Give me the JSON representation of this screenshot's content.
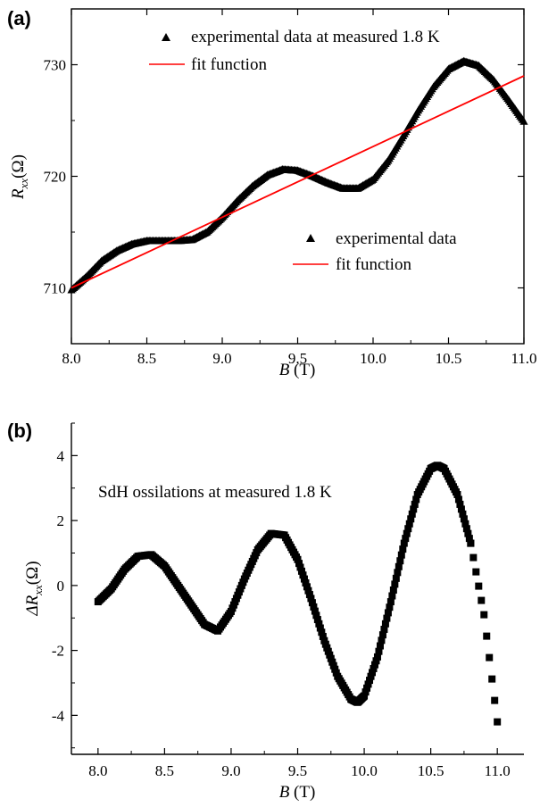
{
  "chart_data": [
    {
      "panel_label": "(a)",
      "type": "scatter",
      "xlabel": {
        "italic": "B",
        "rest": " (T)"
      },
      "ylabel": {
        "italic": "R",
        "sub": "xx",
        "rest": "(Ω)"
      },
      "xlim": [
        8.0,
        11.0
      ],
      "ylim": [
        705,
        735
      ],
      "xticks": [
        "8.0",
        "8.5",
        "9.0",
        "9.5",
        "10.0",
        "10.5",
        "11.0"
      ],
      "yticks": [
        "710",
        "720",
        "730"
      ],
      "legend_top": [
        {
          "label": "experimental data at measured 1.8 K",
          "marker": "triangle"
        },
        {
          "label": "fit function",
          "marker": "line"
        }
      ],
      "legend_mid": [
        {
          "label": "experimental data",
          "marker": "triangle"
        },
        {
          "label": "fit function",
          "marker": "line"
        }
      ],
      "series": [
        {
          "name": "experimental data",
          "marker": "triangle",
          "color": "#000000",
          "points": [
            [
              8.0,
              709.8
            ],
            [
              8.1,
              711.0
            ],
            [
              8.2,
              712.4
            ],
            [
              8.3,
              713.3
            ],
            [
              8.4,
              713.9
            ],
            [
              8.5,
              714.2
            ],
            [
              8.6,
              714.2
            ],
            [
              8.7,
              714.2
            ],
            [
              8.8,
              714.3
            ],
            [
              8.9,
              715.0
            ],
            [
              9.0,
              716.3
            ],
            [
              9.1,
              717.8
            ],
            [
              9.2,
              719.1
            ],
            [
              9.3,
              720.1
            ],
            [
              9.4,
              720.6
            ],
            [
              9.5,
              720.5
            ],
            [
              9.6,
              720.0
            ],
            [
              9.7,
              719.4
            ],
            [
              9.8,
              718.9
            ],
            [
              9.9,
              718.9
            ],
            [
              10.0,
              719.7
            ],
            [
              10.1,
              721.4
            ],
            [
              10.2,
              723.6
            ],
            [
              10.3,
              725.9
            ],
            [
              10.4,
              728.0
            ],
            [
              10.5,
              729.6
            ],
            [
              10.6,
              730.3
            ],
            [
              10.7,
              729.9
            ],
            [
              10.8,
              728.6
            ],
            [
              10.9,
              726.8
            ],
            [
              11.0,
              724.9
            ]
          ]
        },
        {
          "name": "fit function",
          "marker": "line",
          "color": "#ff0000",
          "points": [
            [
              8.0,
              710.0
            ],
            [
              11.0,
              729.0
            ]
          ]
        }
      ]
    },
    {
      "panel_label": "(b)",
      "type": "scatter",
      "annotation": "SdH ossilations at measured 1.8 K",
      "xlabel": {
        "italic": "B",
        "rest": " (T)"
      },
      "ylabel": {
        "italic": "ΔR",
        "sub": "xx",
        "rest": "(Ω)"
      },
      "xlim": [
        7.8,
        11.2
      ],
      "ylim": [
        -5.2,
        5.0
      ],
      "xticks": [
        "8.0",
        "8.5",
        "9.0",
        "9.5",
        "10.0",
        "10.5",
        "11.0"
      ],
      "yticks": [
        "4",
        "2",
        "0",
        "-2",
        "-4"
      ],
      "ytick_values": [
        4,
        2,
        0,
        -2,
        -4
      ],
      "series": [
        {
          "marker": "square",
          "color": "#000000",
          "points": [
            [
              8.0,
              -0.5
            ],
            [
              8.1,
              -0.1
            ],
            [
              8.2,
              0.5
            ],
            [
              8.3,
              0.9
            ],
            [
              8.4,
              0.95
            ],
            [
              8.5,
              0.6
            ],
            [
              8.6,
              0.0
            ],
            [
              8.7,
              -0.6
            ],
            [
              8.8,
              -1.2
            ],
            [
              8.9,
              -1.4
            ],
            [
              9.0,
              -0.8
            ],
            [
              9.1,
              0.2
            ],
            [
              9.2,
              1.1
            ],
            [
              9.3,
              1.6
            ],
            [
              9.4,
              1.55
            ],
            [
              9.5,
              0.8
            ],
            [
              9.6,
              -0.4
            ],
            [
              9.7,
              -1.7
            ],
            [
              9.8,
              -2.8
            ],
            [
              9.9,
              -3.5
            ],
            [
              9.95,
              -3.6
            ],
            [
              10.0,
              -3.4
            ],
            [
              10.1,
              -2.2
            ],
            [
              10.2,
              -0.5
            ],
            [
              10.3,
              1.3
            ],
            [
              10.4,
              2.8
            ],
            [
              10.5,
              3.6
            ],
            [
              10.55,
              3.7
            ],
            [
              10.6,
              3.6
            ],
            [
              10.7,
              2.8
            ],
            [
              10.8,
              1.3
            ],
            [
              10.9,
              -0.9
            ],
            [
              11.0,
              -4.2
            ]
          ]
        }
      ]
    }
  ]
}
